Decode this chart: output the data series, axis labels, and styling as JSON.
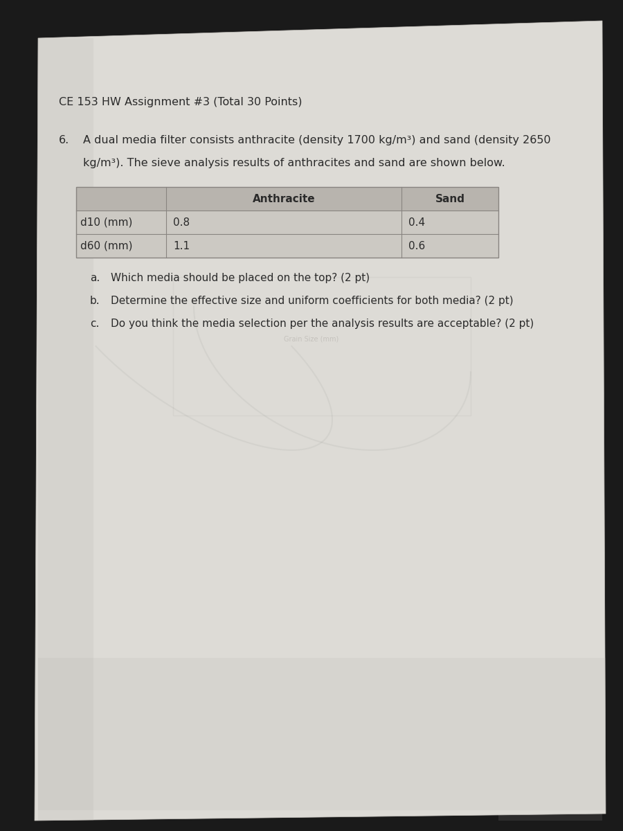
{
  "title": "CE 153 HW Assignment #3 (Total 30 Points)",
  "problem_number": "6.",
  "problem_text_line1": "A dual media filter consists anthracite (density 1700 kg/m³) and sand (density 2650",
  "problem_text_line2": "kg/m³). The sieve analysis results of anthracites and sand are shown below.",
  "table_rows": [
    [
      "d10 (mm)",
      "0.8",
      "0.4"
    ],
    [
      "d60 (mm)",
      "1.1",
      "0.6"
    ]
  ],
  "question_a": "Which media should be placed on the top? (2 pt)",
  "question_b": "Determine the effective size and uniform coefficients for both media? (2 pt)",
  "question_c": "Do you think the media selection per the analysis results are acceptable? (2 pt)",
  "bg_dark": "#1a1a1a",
  "paper_color": "#dddbd6",
  "paper_color_light": "#e8e6e0",
  "text_color": "#2a2a2a",
  "table_header_bg": "#b8b4ae",
  "table_row_bg": "#ccc9c3",
  "table_line_color": "#888480"
}
